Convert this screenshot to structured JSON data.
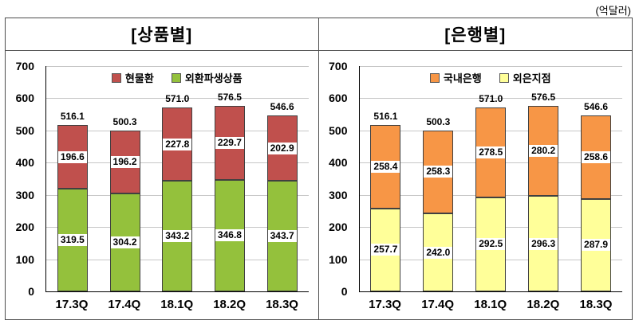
{
  "unit_label": "(억달러)",
  "chart_data": [
    {
      "type": "stacked-bar",
      "title": "[상품별]",
      "categories": [
        "17.3Q",
        "17.4Q",
        "18.1Q",
        "18.2Q",
        "18.3Q"
      ],
      "series": [
        {
          "name": "외환파생상품",
          "color": "#94C13C",
          "values": [
            319.5,
            304.2,
            343.2,
            346.8,
            343.7
          ]
        },
        {
          "name": "현물환",
          "color": "#C0504D",
          "values": [
            196.6,
            196.2,
            227.8,
            229.7,
            202.9
          ]
        }
      ],
      "totals": [
        516.1,
        500.3,
        571.0,
        576.5,
        546.6
      ],
      "legend": [
        "현물환",
        "외환파생상품"
      ],
      "legend_position": "top-center",
      "ylim": [
        0,
        700
      ],
      "ytick_interval": 100,
      "grid": true
    },
    {
      "type": "stacked-bar",
      "title": "[은행별]",
      "categories": [
        "17.3Q",
        "17.4Q",
        "18.1Q",
        "18.2Q",
        "18.3Q"
      ],
      "series": [
        {
          "name": "외은지점",
          "color": "#FFFF99",
          "values": [
            257.7,
            242.0,
            292.5,
            296.3,
            287.9
          ]
        },
        {
          "name": "국내은행",
          "color": "#F79646",
          "values": [
            258.4,
            258.3,
            278.5,
            280.2,
            258.6
          ]
        }
      ],
      "totals": [
        516.1,
        500.3,
        571.0,
        576.5,
        546.6
      ],
      "legend": [
        "국내은행",
        "외은지점"
      ],
      "legend_position": "top-center",
      "ylim": [
        0,
        700
      ],
      "ytick_interval": 100,
      "grid": true
    }
  ]
}
